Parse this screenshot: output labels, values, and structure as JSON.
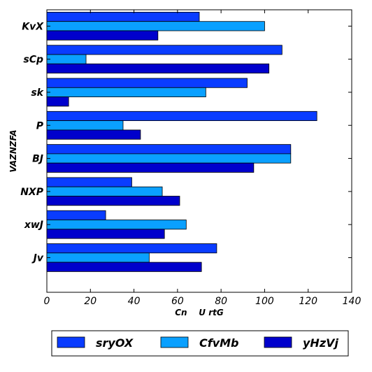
{
  "chart_data": {
    "type": "bar",
    "orientation": "horizontal",
    "categories": [
      "Jv",
      "xwJ",
      "NXP",
      "BJ",
      "P",
      "sk",
      "sCp",
      "KvX"
    ],
    "series": [
      {
        "name": "sryOX",
        "color": "#0a3cff",
        "values": [
          78,
          27,
          39,
          112,
          124,
          92,
          108,
          70
        ]
      },
      {
        "name": "CfvMb",
        "color": "#0aa0ff",
        "values": [
          47,
          64,
          53,
          112,
          35,
          73,
          18,
          100
        ]
      },
      {
        "name": "yHzVj",
        "color": "#0000cc",
        "values": [
          71,
          54,
          61,
          95,
          43,
          10,
          102,
          51
        ]
      }
    ],
    "xlabel": "Cn    U rtG",
    "ylabel": "VAZNZFA",
    "xlim": [
      0,
      140
    ],
    "xticks": [
      "0",
      "20",
      "40",
      "60",
      "80",
      "100",
      "120",
      "140"
    ],
    "grid": false,
    "legend_position": "bottom"
  }
}
